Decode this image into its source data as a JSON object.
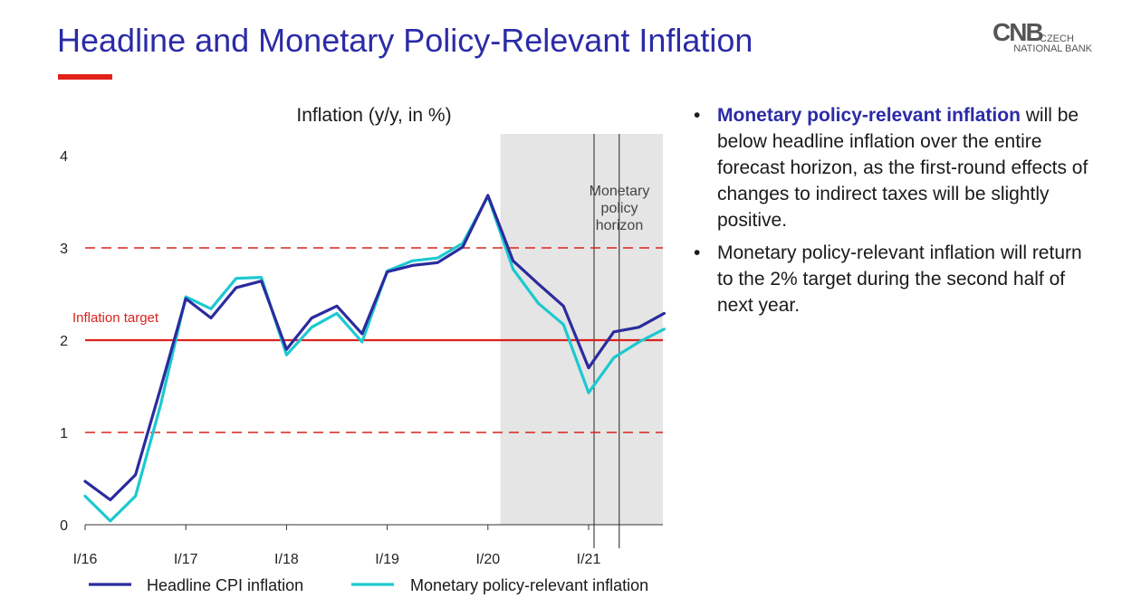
{
  "header": {
    "title": "Headline and Monetary Policy-Relevant Inflation",
    "accent_color": "#e2231a",
    "title_color": "#2b2ba7"
  },
  "logo": {
    "mark": "CNB",
    "line1": "CZECH",
    "line2": "NATIONAL BANK"
  },
  "chart_data": {
    "type": "line",
    "title": "Inflation (y/y, in %)",
    "xlabel": "",
    "ylabel": "",
    "x": [
      "I/16",
      "II/16",
      "III/16",
      "IV/16",
      "I/17",
      "II/17",
      "III/17",
      "IV/17",
      "I/18",
      "II/18",
      "III/18",
      "IV/18",
      "I/19",
      "II/19",
      "III/19",
      "IV/19",
      "I/20",
      "II/20",
      "III/20",
      "IV/20",
      "I/21",
      "II/21",
      "III/21",
      "IV/21"
    ],
    "x_tick_labels": [
      "I/16",
      "I/17",
      "I/18",
      "I/19",
      "I/20",
      "I/21"
    ],
    "ylim": [
      0,
      4
    ],
    "y_ticks": [
      0,
      1,
      2,
      3,
      4
    ],
    "series": [
      {
        "name": "Headline CPI inflation",
        "color": "#2b2b9e",
        "values": [
          0.47,
          0.27,
          0.54,
          1.48,
          2.45,
          2.24,
          2.57,
          2.64,
          1.9,
          2.24,
          2.37,
          2.07,
          2.74,
          2.81,
          2.84,
          3.01,
          3.57,
          2.86,
          2.61,
          2.37,
          1.7,
          2.09,
          2.14,
          2.29
        ]
      },
      {
        "name": "Monetary policy-relevant inflation",
        "color": "#1cc9cf",
        "values": [
          0.31,
          0.04,
          0.31,
          1.3,
          2.47,
          2.34,
          2.67,
          2.68,
          1.84,
          2.14,
          2.29,
          1.98,
          2.75,
          2.86,
          2.89,
          3.05,
          3.56,
          2.77,
          2.4,
          2.17,
          1.43,
          1.81,
          1.98,
          2.12
        ]
      }
    ],
    "reference_lines": {
      "target": 2,
      "target_label": "Inflation target",
      "target_color": "#d9231d",
      "band": [
        1,
        3
      ]
    },
    "forecast_shading_from": "II/20",
    "policy_horizon": {
      "label_lines": [
        "Monetary",
        "policy",
        "horizon"
      ],
      "from": "I/21",
      "to": "II/21"
    },
    "grid": false,
    "legend_placement": "bottom"
  },
  "bullets": [
    {
      "highlight": "Monetary policy-relevant inflation",
      "text": " will be below headline inflation over the entire forecast horizon, as the first-round effects of changes to indirect taxes will be slightly positive."
    },
    {
      "highlight": "",
      "text": "Monetary policy-relevant inflation will return to the 2% target during the second half of next year."
    }
  ],
  "bullet_glyph": "•"
}
